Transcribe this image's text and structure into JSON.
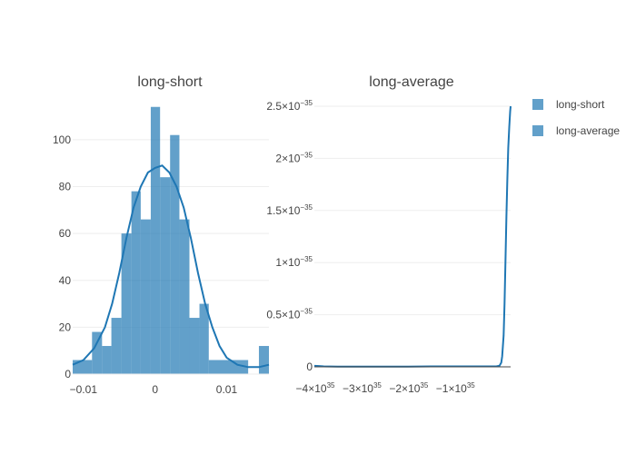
{
  "colors": {
    "bar": "#1f77b4",
    "grid": "#eeeeee",
    "axis_line": "#444444",
    "text": "#444444"
  },
  "legend": {
    "placement": "top-right",
    "items": [
      {
        "label": "long-short",
        "swatch_color": "#1f77b4"
      },
      {
        "label": "long-average",
        "swatch_color": "#1f77b4"
      }
    ]
  },
  "chart_data": [
    {
      "type": "bar",
      "title": "long-short",
      "xlabel": "",
      "ylabel": "",
      "xlim": [
        -0.0115,
        0.0159
      ],
      "ylim": [
        0,
        117
      ],
      "grid": true,
      "bars": [
        {
          "x0": -0.0115,
          "x1": -0.0088,
          "count": 6
        },
        {
          "x0": -0.0088,
          "x1": -0.0074,
          "count": 18
        },
        {
          "x0": -0.0074,
          "x1": -0.0061,
          "count": 12
        },
        {
          "x0": -0.0061,
          "x1": -0.0047,
          "count": 24
        },
        {
          "x0": -0.0047,
          "x1": -0.0033,
          "count": 60
        },
        {
          "x0": -0.0033,
          "x1": -0.002,
          "count": 78
        },
        {
          "x0": -0.002,
          "x1": -0.0006,
          "count": 66
        },
        {
          "x0": -0.0006,
          "x1": 0.0007,
          "count": 114
        },
        {
          "x0": 0.0007,
          "x1": 0.0021,
          "count": 84
        },
        {
          "x0": 0.0021,
          "x1": 0.0034,
          "count": 102
        },
        {
          "x0": 0.0034,
          "x1": 0.0048,
          "count": 66
        },
        {
          "x0": 0.0048,
          "x1": 0.0062,
          "count": 24
        },
        {
          "x0": 0.0062,
          "x1": 0.0075,
          "count": 30
        },
        {
          "x0": 0.0075,
          "x1": 0.013,
          "count": 6
        },
        {
          "x0": 0.013,
          "x1": 0.0145,
          "count": 0
        },
        {
          "x0": 0.0145,
          "x1": 0.0159,
          "count": 12
        }
      ],
      "density_curve": {
        "x": [
          -0.0115,
          -0.01,
          -0.0085,
          -0.007,
          -0.006,
          -0.005,
          -0.004,
          -0.003,
          -0.002,
          -0.001,
          0.0,
          0.001,
          0.002,
          0.003,
          0.004,
          0.005,
          0.006,
          0.007,
          0.008,
          0.009,
          0.01,
          0.0115,
          0.013,
          0.0145,
          0.0159
        ],
        "y": [
          4,
          6,
          11,
          20,
          30,
          43,
          58,
          71,
          80,
          86,
          88,
          89,
          86,
          80,
          71,
          58,
          43,
          30,
          20,
          12,
          7,
          4,
          3,
          3,
          4
        ]
      },
      "x_ticks": [
        {
          "value": -0.01,
          "label": "−0.01"
        },
        {
          "value": 0,
          "label": "0"
        },
        {
          "value": 0.01,
          "label": "0.01"
        }
      ],
      "y_ticks": [
        {
          "value": 0,
          "label": "0"
        },
        {
          "value": 20,
          "label": "20"
        },
        {
          "value": 40,
          "label": "40"
        },
        {
          "value": 60,
          "label": "60"
        },
        {
          "value": 80,
          "label": "80"
        },
        {
          "value": 100,
          "label": "100"
        }
      ]
    },
    {
      "type": "line",
      "title": "long-average",
      "xlabel": "",
      "ylabel": "",
      "xlim": [
        -4e+35,
        2e+34
      ],
      "ylim": [
        -1e-37,
        2.52e-35
      ],
      "grid": true,
      "series": [
        {
          "x": [
            -4e+35,
            -3.9e+35,
            -3.8e+35,
            -3.5e+35,
            -3e+35,
            -2.5e+35,
            -2e+35,
            -1.5e+35,
            -1e+35,
            -5e+34,
            -1e+34,
            -4e+33,
            0.0,
            2e+33,
            5e+33,
            7e+33,
            9e+33,
            1.1e+34,
            1.3e+34,
            1.5e+34,
            1.7e+34,
            1.9e+34,
            2e+34
          ],
          "y": [
            1e-37,
            8e-38,
            4e-38,
            2e-38,
            2e-38,
            3e-38,
            3e-38,
            4e-38,
            4e-38,
            4e-38,
            5e-38,
            1e-37,
            4e-37,
            1e-36,
            3e-36,
            6e-36,
            1e-35,
            1.45e-35,
            1.8e-35,
            2.1e-35,
            2.3e-35,
            2.45e-35,
            2.5e-35
          ]
        }
      ],
      "x_ticks": [
        {
          "value": -4e+35,
          "mantissa": "−4×10",
          "exp": "35"
        },
        {
          "value": -3e+35,
          "mantissa": "−3×10",
          "exp": "35"
        },
        {
          "value": -2e+35,
          "mantissa": "−2×10",
          "exp": "35"
        },
        {
          "value": -1e+35,
          "mantissa": "−1×10",
          "exp": "35"
        }
      ],
      "y_ticks": [
        {
          "value": 0,
          "mantissa": "0",
          "exp": ""
        },
        {
          "value": 5e-36,
          "mantissa": "0.5×10",
          "exp": "−35"
        },
        {
          "value": 1e-35,
          "mantissa": "1×10",
          "exp": "−35"
        },
        {
          "value": 1.5e-35,
          "mantissa": "1.5×10",
          "exp": "−35"
        },
        {
          "value": 2e-35,
          "mantissa": "2×10",
          "exp": "−35"
        },
        {
          "value": 2.5e-35,
          "mantissa": "2.5×10",
          "exp": "−35"
        }
      ]
    }
  ]
}
